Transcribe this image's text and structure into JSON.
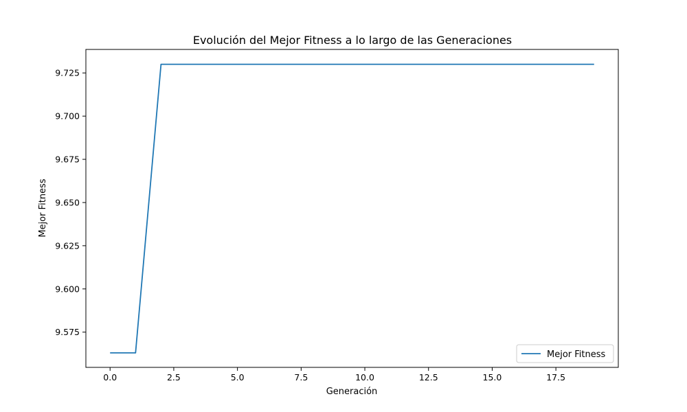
{
  "chart_data": {
    "type": "line",
    "title": "Evolución del Mejor Fitness a lo largo de las Generaciones",
    "xlabel": "Generación",
    "ylabel": "Mejor Fitness",
    "xlim": [
      -0.95,
      19.95
    ],
    "ylim": [
      9.5546,
      9.7386
    ],
    "xticks": [
      0.0,
      2.5,
      5.0,
      7.5,
      10.0,
      12.5,
      15.0,
      17.5
    ],
    "xtick_labels": [
      "0.0",
      "2.5",
      "5.0",
      "7.5",
      "10.0",
      "12.5",
      "15.0",
      "17.5"
    ],
    "yticks": [
      9.575,
      9.6,
      9.625,
      9.65,
      9.675,
      9.7,
      9.725
    ],
    "ytick_labels": [
      "9.575",
      "9.600",
      "9.625",
      "9.650",
      "9.675",
      "9.700",
      "9.725"
    ],
    "grid": false,
    "legend_position": "lower-right",
    "series": [
      {
        "name": "Mejor Fitness",
        "color": "#1f77b4",
        "x": [
          0,
          1,
          2,
          3,
          4,
          5,
          6,
          7,
          8,
          9,
          10,
          11,
          12,
          13,
          13,
          15,
          16,
          17,
          18,
          19
        ],
        "y": [
          9.563,
          9.563,
          9.73,
          9.73,
          9.73,
          9.73,
          9.73,
          9.73,
          9.73,
          9.73,
          9.73,
          9.73,
          9.73,
          9.73,
          9.73,
          9.73,
          9.73,
          9.73,
          9.73,
          9.73
        ]
      }
    ]
  }
}
